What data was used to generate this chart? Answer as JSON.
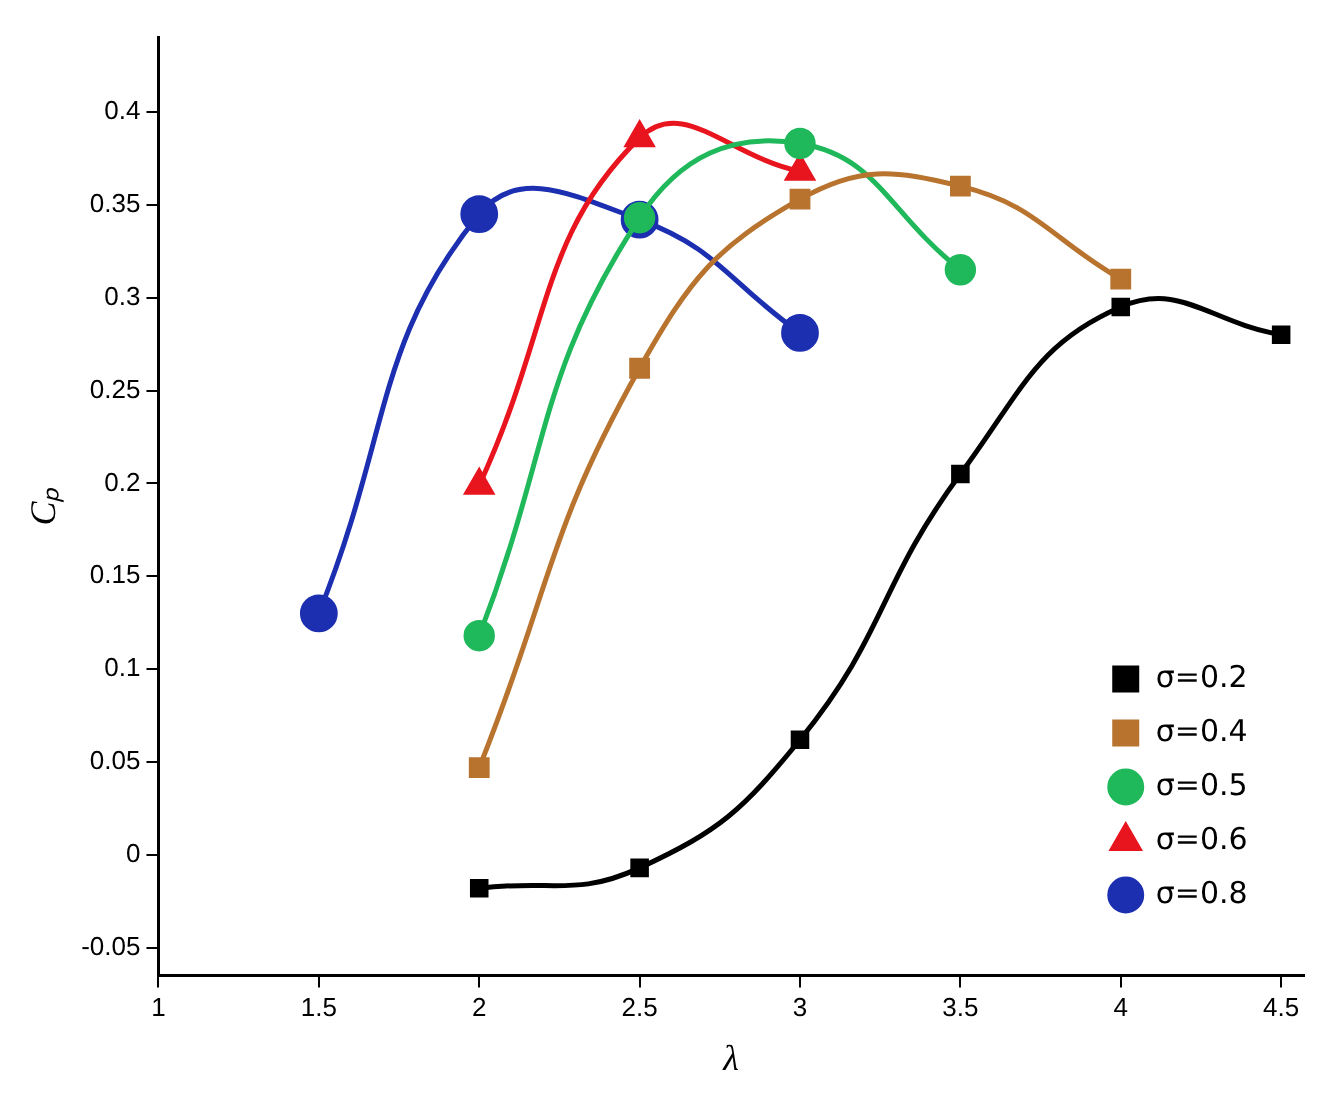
{
  "chart_data": {
    "type": "line",
    "xlabel": "λ",
    "ylabel": "Cₚ",
    "xlim": [
      1,
      4.57
    ],
    "ylim": [
      -0.065,
      0.44
    ],
    "xticks": [
      1,
      1.5,
      2,
      2.5,
      3,
      3.5,
      4,
      4.5
    ],
    "yticks": [
      -0.05,
      0,
      0.05,
      0.1,
      0.15,
      0.2,
      0.25,
      0.3,
      0.35,
      0.4
    ],
    "grid": false,
    "legend": "bottom right",
    "series": [
      {
        "name": "σ=0.2",
        "color": "#000000",
        "marker": "square",
        "x": [
          2,
          2.5,
          3,
          3.5,
          4,
          4.5
        ],
        "values": [
          -0.018,
          -0.007,
          0.062,
          0.205,
          0.295,
          0.28
        ]
      },
      {
        "name": "σ=0.4",
        "color": "#b8732e",
        "marker": "square",
        "x": [
          2,
          2.5,
          3,
          3.5,
          4
        ],
        "values": [
          0.047,
          0.262,
          0.353,
          0.36,
          0.31
        ]
      },
      {
        "name": "σ=0.5",
        "color": "#1fb85a",
        "marker": "circle",
        "x": [
          2,
          2.5,
          3,
          3.5
        ],
        "values": [
          0.118,
          0.343,
          0.383,
          0.315
        ]
      },
      {
        "name": "σ=0.6",
        "color": "#e8141e",
        "marker": "triangle",
        "x": [
          2,
          2.5,
          3
        ],
        "values": [
          0.199,
          0.386,
          0.368
        ]
      },
      {
        "name": "σ=0.8",
        "color": "#1c2fb0",
        "marker": "circle",
        "x": [
          1.5,
          2,
          2.5,
          3
        ],
        "values": [
          0.13,
          0.345,
          0.342,
          0.281
        ]
      }
    ]
  }
}
